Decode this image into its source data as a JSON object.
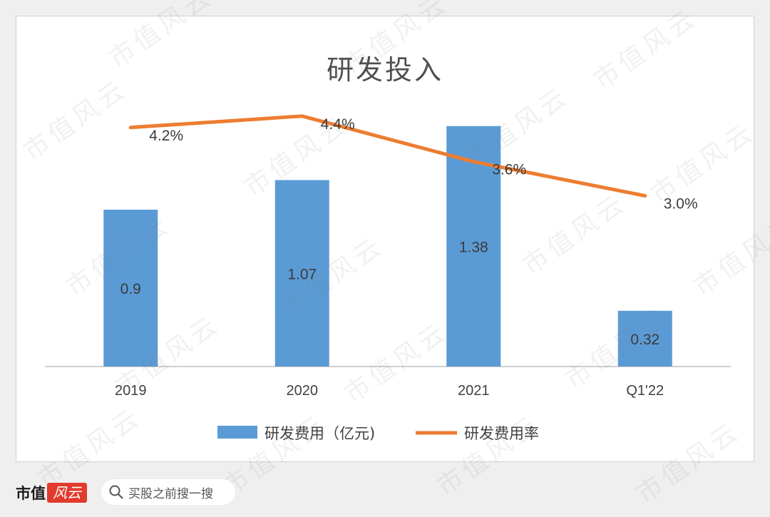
{
  "chart_data": {
    "type": "bar+line",
    "title": "研发投入",
    "categories": [
      "2019",
      "2020",
      "2021",
      "Q1'22"
    ],
    "series": [
      {
        "name": "研发费用（亿元)",
        "type": "bar",
        "color": "#5b9bd5",
        "values": [
          0.9,
          1.07,
          1.38,
          0.32
        ],
        "labels": [
          "0.9",
          "1.07",
          "1.38",
          "0.32"
        ]
      },
      {
        "name": "研发费用率",
        "type": "line",
        "color": "#ed7d31",
        "values": [
          4.2,
          4.4,
          3.6,
          3.0
        ],
        "labels": [
          "4.2%",
          "4.4%",
          "3.6%",
          "3.0%"
        ]
      }
    ],
    "bar_ylim": [
      0,
      1.6
    ],
    "line_ylim": [
      0,
      5.4
    ],
    "legend_position": "bottom"
  },
  "footer": {
    "brand_text": "市值",
    "brand_logo_text": "风云",
    "search_placeholder": "买股之前搜一搜"
  },
  "watermark": "市值风云"
}
